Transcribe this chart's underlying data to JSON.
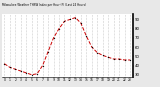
{
  "hours": [
    0,
    1,
    2,
    3,
    4,
    5,
    6,
    7,
    8,
    9,
    10,
    11,
    12,
    13,
    14,
    15,
    16,
    17,
    18,
    19,
    20,
    21,
    22,
    23
  ],
  "values": [
    42,
    38,
    36,
    34,
    32,
    30,
    31,
    40,
    55,
    70,
    80,
    88,
    90,
    92,
    86,
    72,
    60,
    54,
    51,
    49,
    47,
    47,
    46,
    46
  ],
  "line_color": "#cc0000",
  "marker_color": "#000000",
  "bg_color": "#e8e8e8",
  "plot_bg": "#ffffff",
  "grid_color": "#888888",
  "ylim": [
    28,
    96
  ],
  "ytick_values": [
    30,
    40,
    50,
    60,
    70,
    80,
    90
  ],
  "ytick_labels": [
    "30",
    "40",
    "50",
    "60",
    "70",
    "80",
    "90"
  ],
  "title": "Milwaukee Weather THSW Index per Hour (F) (Last 24 Hours)"
}
